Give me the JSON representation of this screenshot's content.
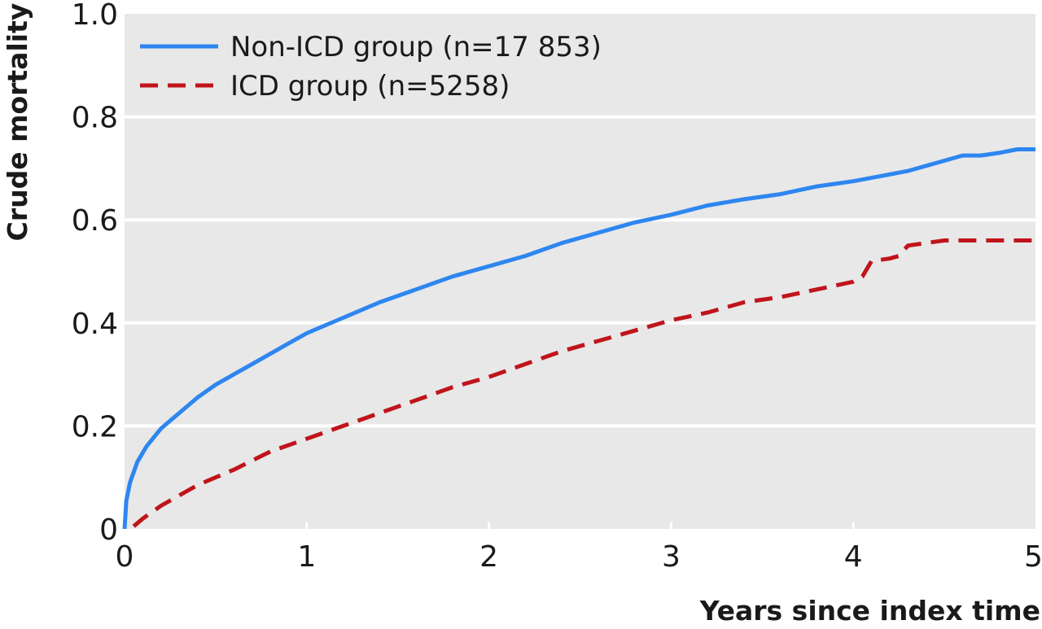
{
  "chart_data": {
    "type": "line",
    "title": "",
    "xlabel": "Years since index time",
    "ylabel": "Crude mortality",
    "xlim": [
      0,
      5
    ],
    "ylim": [
      0,
      1.0
    ],
    "x_ticks": [
      "0",
      "1",
      "2",
      "3",
      "4",
      "5"
    ],
    "y_ticks": [
      "0",
      "0.2",
      "0.4",
      "0.6",
      "0.8",
      "1.0"
    ],
    "grid": true,
    "legend_position": "top-left",
    "background_color": "#e8e8e8",
    "series": [
      {
        "name": "Non-ICD group (n=17 853)",
        "color": "#2e86f0",
        "style": "solid",
        "x": [
          0,
          0.01,
          0.03,
          0.07,
          0.12,
          0.2,
          0.3,
          0.4,
          0.5,
          0.6,
          0.7,
          0.8,
          0.9,
          1.0,
          1.2,
          1.4,
          1.6,
          1.8,
          2.0,
          2.2,
          2.4,
          2.6,
          2.8,
          3.0,
          3.2,
          3.4,
          3.6,
          3.8,
          4.0,
          4.15,
          4.3,
          4.45,
          4.6,
          4.7,
          4.8,
          4.9,
          5.0
        ],
        "y": [
          0,
          0.055,
          0.09,
          0.13,
          0.16,
          0.195,
          0.225,
          0.255,
          0.28,
          0.3,
          0.32,
          0.34,
          0.36,
          0.38,
          0.41,
          0.44,
          0.465,
          0.49,
          0.51,
          0.53,
          0.555,
          0.575,
          0.595,
          0.61,
          0.628,
          0.64,
          0.65,
          0.665,
          0.675,
          0.685,
          0.695,
          0.71,
          0.725,
          0.725,
          0.73,
          0.737,
          0.737
        ]
      },
      {
        "name": "ICD group (n=5258)",
        "color": "#c0141b",
        "style": "dashed",
        "x": [
          0.05,
          0.1,
          0.2,
          0.3,
          0.4,
          0.5,
          0.6,
          0.8,
          1.0,
          1.2,
          1.4,
          1.6,
          1.8,
          2.0,
          2.2,
          2.4,
          2.6,
          2.8,
          3.0,
          3.2,
          3.4,
          3.6,
          3.8,
          4.0,
          4.05,
          4.1,
          4.2,
          4.25,
          4.3,
          4.5,
          4.8,
          5.0
        ],
        "y": [
          0.005,
          0.02,
          0.045,
          0.065,
          0.085,
          0.1,
          0.115,
          0.15,
          0.175,
          0.2,
          0.225,
          0.25,
          0.275,
          0.295,
          0.32,
          0.345,
          0.365,
          0.385,
          0.405,
          0.42,
          0.44,
          0.45,
          0.465,
          0.48,
          0.49,
          0.52,
          0.525,
          0.53,
          0.55,
          0.56,
          0.56,
          0.56
        ]
      }
    ]
  }
}
